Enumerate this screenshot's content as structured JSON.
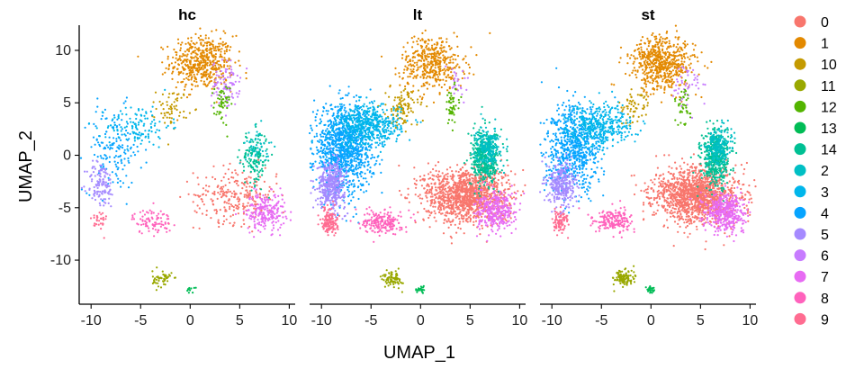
{
  "chart_data": {
    "type": "scatter",
    "facets": [
      "hc",
      "lt",
      "st"
    ],
    "xlabel": "UMAP_1",
    "ylabel": "UMAP_2",
    "xlim": [
      -11.2,
      10.6
    ],
    "ylim": [
      -14.2,
      12.4
    ],
    "xticks": [
      -10,
      -5,
      0,
      5,
      10
    ],
    "yticks": [
      10,
      5,
      0,
      -5,
      -10
    ],
    "xtick_labels": [
      "-10",
      "-5",
      "0",
      "5",
      "10"
    ],
    "ytick_labels": [
      "10",
      "5",
      "0",
      "-5",
      "-10"
    ],
    "legend_position": "right",
    "legend": [
      {
        "label": "0",
        "color": "#F8766D"
      },
      {
        "label": "1",
        "color": "#E38900"
      },
      {
        "label": "10",
        "color": "#C49A00"
      },
      {
        "label": "11",
        "color": "#99A800"
      },
      {
        "label": "12",
        "color": "#53B400"
      },
      {
        "label": "13",
        "color": "#00BC56"
      },
      {
        "label": "14",
        "color": "#00C094"
      },
      {
        "label": "2",
        "color": "#00BFC4"
      },
      {
        "label": "3",
        "color": "#00B6EB"
      },
      {
        "label": "4",
        "color": "#06A4FF"
      },
      {
        "label": "5",
        "color": "#A58AFF"
      },
      {
        "label": "6",
        "color": "#C77CFF"
      },
      {
        "label": "7",
        "color": "#E76BF3"
      },
      {
        "label": "8",
        "color": "#FF62BC"
      },
      {
        "label": "9",
        "color": "#FF6C91"
      }
    ],
    "clusters": [
      {
        "cluster": "1",
        "color": "#E38900",
        "center": [
          1.2,
          8.8
        ],
        "spread": [
          1.6,
          1.3
        ],
        "weights": {
          "hc": 500,
          "lt": 420,
          "st": 600
        }
      },
      {
        "cluster": "6",
        "color": "#C77CFF",
        "center": [
          3.6,
          6.8
        ],
        "spread": [
          0.7,
          1.1
        ],
        "weights": {
          "hc": 90,
          "lt": 25,
          "st": 45
        }
      },
      {
        "cluster": "10",
        "color": "#C49A00",
        "center": [
          -1.8,
          4.5
        ],
        "spread": [
          0.8,
          0.9
        ],
        "weights": {
          "hc": 60,
          "lt": 110,
          "st": 60
        }
      },
      {
        "cluster": "12",
        "color": "#53B400",
        "center": [
          3.2,
          4.8
        ],
        "spread": [
          0.4,
          1.0
        ],
        "weights": {
          "hc": 50,
          "lt": 50,
          "st": 40
        }
      },
      {
        "cluster": "4",
        "color": "#06A4FF",
        "center": [
          -7.8,
          0.6
        ],
        "spread": [
          1.5,
          2.0
        ],
        "weights": {
          "hc": 160,
          "lt": 1100,
          "st": 700
        }
      },
      {
        "cluster": "3",
        "color": "#00B6EB",
        "center": [
          -5.2,
          2.8
        ],
        "spread": [
          1.6,
          1.0
        ],
        "weights": {
          "hc": 120,
          "lt": 500,
          "st": 380
        }
      },
      {
        "cluster": "5",
        "color": "#A58AFF",
        "center": [
          -9.0,
          -2.8
        ],
        "spread": [
          0.7,
          1.1
        ],
        "weights": {
          "hc": 120,
          "lt": 420,
          "st": 300
        }
      },
      {
        "cluster": "0",
        "color": "#F8766D",
        "center": [
          4.6,
          -3.8
        ],
        "spread": [
          2.1,
          1.3
        ],
        "weights": {
          "hc": 260,
          "lt": 1300,
          "st": 1400
        }
      },
      {
        "cluster": "14",
        "color": "#00C094",
        "center": [
          6.5,
          -0.3
        ],
        "spread": [
          0.7,
          1.3
        ],
        "weights": {
          "hc": 130,
          "lt": 420,
          "st": 420
        }
      },
      {
        "cluster": "2",
        "color": "#00BFC4",
        "center": [
          6.8,
          0.9
        ],
        "spread": [
          0.6,
          0.9
        ],
        "weights": {
          "hc": 50,
          "lt": 220,
          "st": 220
        }
      },
      {
        "cluster": "7",
        "color": "#E76BF3",
        "center": [
          7.6,
          -5.4
        ],
        "spread": [
          1.0,
          0.9
        ],
        "weights": {
          "hc": 220,
          "lt": 330,
          "st": 420
        }
      },
      {
        "cluster": "8",
        "color": "#FF62BC",
        "center": [
          -3.8,
          -6.3
        ],
        "spread": [
          1.0,
          0.6
        ],
        "weights": {
          "hc": 90,
          "lt": 190,
          "st": 180
        }
      },
      {
        "cluster": "9",
        "color": "#FF6C91",
        "center": [
          -9.2,
          -6.3
        ],
        "spread": [
          0.4,
          0.6
        ],
        "weights": {
          "hc": 30,
          "lt": 140,
          "st": 90
        }
      },
      {
        "cluster": "11",
        "color": "#99A800",
        "center": [
          -2.8,
          -11.8
        ],
        "spread": [
          0.5,
          0.4
        ],
        "weights": {
          "hc": 50,
          "lt": 80,
          "st": 120
        }
      },
      {
        "cluster": "13",
        "color": "#00BC56",
        "center": [
          0.0,
          -12.8
        ],
        "spread": [
          0.2,
          0.15
        ],
        "weights": {
          "hc": 10,
          "lt": 25,
          "st": 25
        }
      }
    ]
  }
}
